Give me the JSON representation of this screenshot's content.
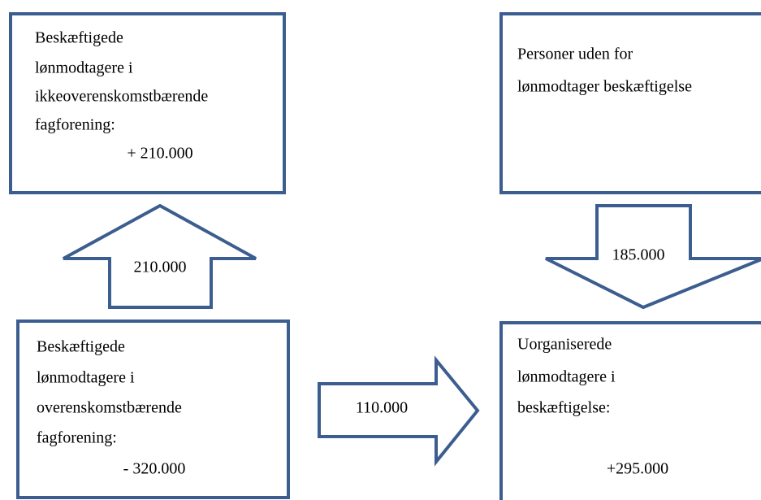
{
  "nodes": [
    {
      "lines": [
        "Beskæftigede",
        "lønmodtagere i",
        "ikkeoverenskomstbærende",
        "fagforening:"
      ],
      "value": "+ 210.000"
    },
    {
      "lines": [
        "Personer uden for",
        "lønmodtager beskæftigelse"
      ]
    },
    {
      "lines": [
        "Beskæftigede",
        "lønmodtagere i",
        "overenskomstbærende",
        "fagforening:"
      ],
      "value": "- 320.000"
    },
    {
      "lines": [
        "Uorganiserede",
        "lønmodtagere i",
        "beskæftigelse:"
      ],
      "value": "+295.000"
    }
  ],
  "arrows": [
    {
      "label": "210.000"
    },
    {
      "label": "185.000"
    },
    {
      "label": "110.000"
    }
  ]
}
